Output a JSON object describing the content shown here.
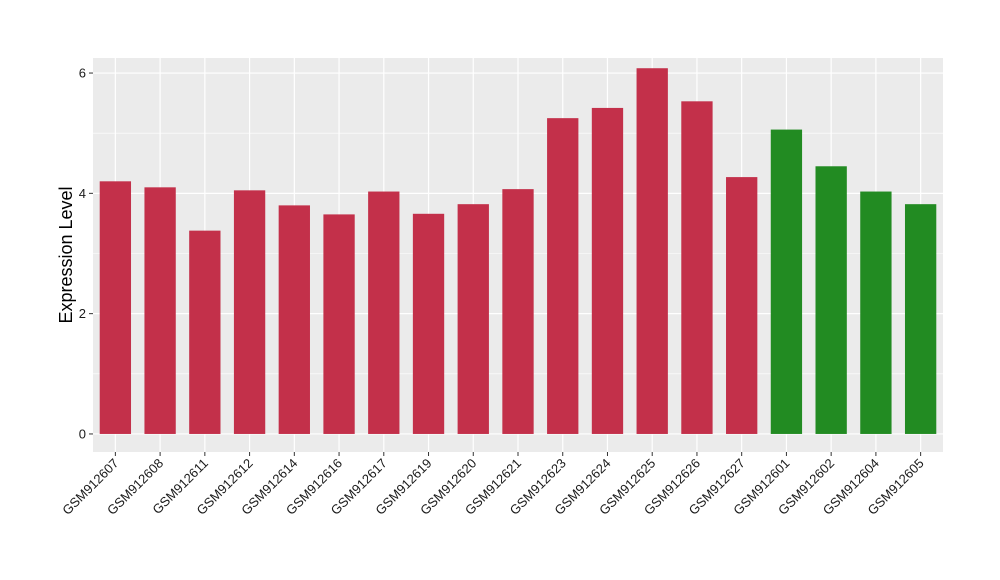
{
  "chart_data": {
    "type": "bar",
    "title": "",
    "xlabel": "",
    "ylabel": "Expression Level",
    "ylim": [
      -0.3,
      6.25
    ],
    "yticks": [
      0,
      2,
      4,
      6
    ],
    "ytick_labels": [
      "0",
      "2",
      "4",
      "6"
    ],
    "grid": true,
    "legend": "none",
    "colors": {
      "group1": "#C3304A",
      "group2": "#228B22",
      "panel": "#EBEBEB",
      "grid": "#FFFFFF"
    },
    "categories": [
      "GSM912607",
      "GSM912608",
      "GSM912611",
      "GSM912612",
      "GSM912614",
      "GSM912616",
      "GSM912617",
      "GSM912619",
      "GSM912620",
      "GSM912621",
      "GSM912623",
      "GSM912624",
      "GSM912625",
      "GSM912626",
      "GSM912627",
      "GSM912601",
      "GSM912602",
      "GSM912604",
      "GSM912605"
    ],
    "values": [
      4.2,
      4.1,
      3.38,
      4.05,
      3.8,
      3.65,
      4.03,
      3.66,
      3.82,
      4.07,
      5.25,
      5.42,
      6.08,
      5.53,
      4.27,
      5.06,
      4.45,
      4.03,
      3.82
    ],
    "groups": [
      "group1",
      "group1",
      "group1",
      "group1",
      "group1",
      "group1",
      "group1",
      "group1",
      "group1",
      "group1",
      "group1",
      "group1",
      "group1",
      "group1",
      "group1",
      "group2",
      "group2",
      "group2",
      "group2"
    ]
  }
}
